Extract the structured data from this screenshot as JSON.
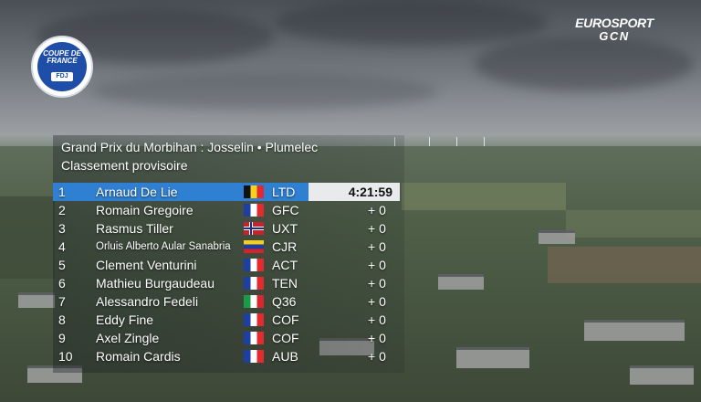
{
  "broadcast": {
    "logo_left": "COUPE DE FRANCE",
    "logo_left_sub": "FDJ",
    "brand_line1": "EUROSPORT",
    "brand_line2": "GCN"
  },
  "header": {
    "line1": "Grand Prix du Morbihan : Josselin •  Plumelec",
    "line2": "Classement provisoire"
  },
  "colors": {
    "highlight": "#2f80d2",
    "timebox": "#e9eaeb"
  },
  "standings": [
    {
      "pos": "1",
      "name": "Arnaud De Lie",
      "flag": "belgium-flag",
      "team": "LTD",
      "gap": "4:21:59"
    },
    {
      "pos": "2",
      "name": "Romain Gregoire",
      "flag": "france-flag",
      "team": "GFC",
      "gap": "+ 0"
    },
    {
      "pos": "3",
      "name": "Rasmus Tiller",
      "flag": "norway-flag",
      "team": "UXT",
      "gap": "+ 0"
    },
    {
      "pos": "4",
      "name": "Orluis Alberto Aular Sanabria",
      "flag": "venezuela-flag",
      "team": "CJR",
      "gap": "+ 0"
    },
    {
      "pos": "5",
      "name": "Clement Venturini",
      "flag": "france-flag",
      "team": "ACT",
      "gap": "+ 0"
    },
    {
      "pos": "6",
      "name": "Mathieu Burgaudeau",
      "flag": "france-flag",
      "team": "TEN",
      "gap": "+ 0"
    },
    {
      "pos": "7",
      "name": "Alessandro Fedeli",
      "flag": "italy-flag",
      "team": "Q36",
      "gap": "+ 0"
    },
    {
      "pos": "8",
      "name": "Eddy Fine",
      "flag": "france-flag",
      "team": "COF",
      "gap": "+ 0"
    },
    {
      "pos": "9",
      "name": "Axel Zingle",
      "flag": "france-flag",
      "team": "COF",
      "gap": "+ 0"
    },
    {
      "pos": "10",
      "name": "Romain Cardis",
      "flag": "france-flag",
      "team": "AUB",
      "gap": "+ 0"
    }
  ]
}
